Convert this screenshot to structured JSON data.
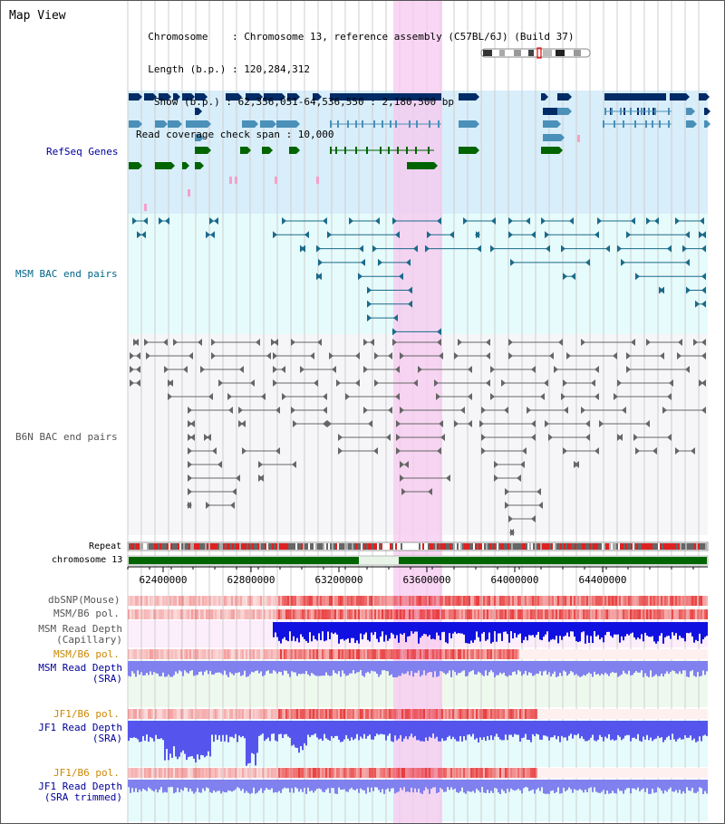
{
  "header": {
    "title": "Map View",
    "info_lines": [
      "  Chromosome    : Chromosome 13, reference assembly (C57BL/6J) (Build 37)",
      "  Length (b.p.) : 120,284,312",
      "   Show (b.p.) : 62,356,051-64,536,550 : 2,180,500 bp",
      "Read coverage check span : 10,000"
    ]
  },
  "tracks": {
    "refseq": "RefSeq Genes",
    "msm_bac": "MSM BAC end pairs",
    "b6n_bac": "B6N BAC end pairs",
    "repeat": "Repeat",
    "chrom": "chromosome 13",
    "dbsnp": "dbSNP(Mouse)",
    "msm_b6_pol": "MSM/B6 pol.",
    "msm_depth_cap_1": "MSM Read Depth",
    "msm_depth_cap_2": "(Capillary)",
    "msm_b6_pol2": "MSM/B6 pol.",
    "msm_depth_sra_1": "MSM Read Depth",
    "msm_depth_sra_2": "(SRA)",
    "jf1_b6_pol": "JF1/B6 pol.",
    "jf1_depth_sra_1": "JF1 Read Depth",
    "jf1_depth_sra_2": "(SRA)",
    "jf1_b6_pol2": "JF1/B6 pol.",
    "jf1_depth_trim_1": "JF1 Read Depth",
    "jf1_depth_trim_2": "(SRA trimmed)"
  },
  "axis_ticks": [
    "62400000",
    "62800000",
    "63200000",
    "63600000",
    "64000000",
    "64400000"
  ],
  "colors": {
    "refseq_label": "#000099",
    "msm_label": "#006688",
    "b6n_label": "#555555",
    "pol_label": "#cc8800",
    "depth_label": "#000099",
    "highlight": "#f7c8ef",
    "chrom_bar": "#006400"
  }
}
